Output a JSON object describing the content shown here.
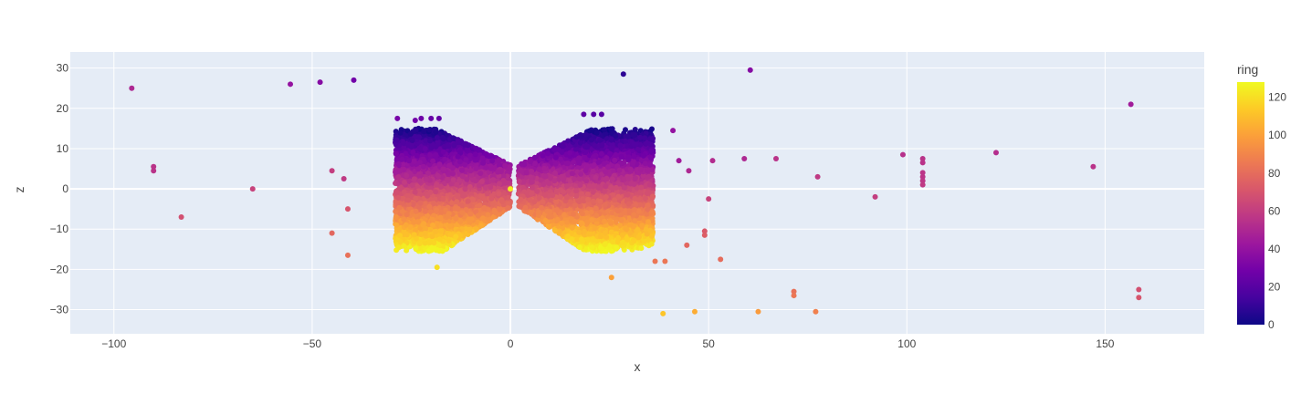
{
  "chart_data": {
    "type": "scatter",
    "title": "",
    "xlabel": "x",
    "ylabel": "z",
    "xlim": [
      -111,
      175
    ],
    "ylim": [
      -36,
      34
    ],
    "x_ticks": [
      -100,
      -50,
      0,
      50,
      100,
      150
    ],
    "x_tick_labels": [
      "−100",
      "−50",
      "0",
      "50",
      "100",
      "150"
    ],
    "y_ticks": [
      -30,
      -20,
      -10,
      0,
      10,
      20,
      30
    ],
    "y_tick_labels": [
      "−30",
      "−20",
      "−10",
      "0",
      "10",
      "20",
      "30"
    ],
    "grid": true,
    "legend": "none",
    "plot_background": "#e5ecf6",
    "grid_color": "#ffffff",
    "colorbar": {
      "title": "ring",
      "min": 0,
      "max": 128,
      "ticks": [
        0,
        20,
        40,
        60,
        80,
        100,
        120
      ],
      "tick_labels": [
        "0",
        "20",
        "40",
        "60",
        "80",
        "100",
        "120"
      ],
      "colorscale": [
        "#0d0887",
        "#46039f",
        "#7201a8",
        "#9c179e",
        "#bd3786",
        "#d8576b",
        "#ed7953",
        "#fb9f3a",
        "#fdca26",
        "#f0f921"
      ]
    },
    "points": [
      {
        "x": -95.5,
        "z": 25,
        "ring": 50
      },
      {
        "x": -90,
        "z": 5.5,
        "ring": 55
      },
      {
        "x": -90,
        "z": 4.5,
        "ring": 55
      },
      {
        "x": -83,
        "z": -7,
        "ring": 68
      },
      {
        "x": -65,
        "z": 0,
        "ring": 62
      },
      {
        "x": -55.5,
        "z": 26,
        "ring": 40
      },
      {
        "x": -48,
        "z": 26.5,
        "ring": 35
      },
      {
        "x": -39.5,
        "z": 27,
        "ring": 28
      },
      {
        "x": -45,
        "z": 4.5,
        "ring": 60
      },
      {
        "x": -42,
        "z": 2.5,
        "ring": 58
      },
      {
        "x": -41,
        "z": -5,
        "ring": 70
      },
      {
        "x": -45,
        "z": -11,
        "ring": 78
      },
      {
        "x": -41,
        "z": -16.5,
        "ring": 82
      },
      {
        "x": -28.5,
        "z": 17.5,
        "ring": 30
      },
      {
        "x": -24,
        "z": 17,
        "ring": 28
      },
      {
        "x": -22.5,
        "z": 17.5,
        "ring": 27
      },
      {
        "x": -20,
        "z": 17.5,
        "ring": 25
      },
      {
        "x": -18,
        "z": 17.5,
        "ring": 24
      },
      {
        "x": -18.5,
        "z": -19.5,
        "ring": 120
      },
      {
        "x": 0,
        "z": 0,
        "ring": 124
      },
      {
        "x": 18.5,
        "z": 18.5,
        "ring": 22
      },
      {
        "x": 21,
        "z": 18.5,
        "ring": 20
      },
      {
        "x": 23,
        "z": 18.5,
        "ring": 20
      },
      {
        "x": 28.5,
        "z": 28.5,
        "ring": 8
      },
      {
        "x": 41,
        "z": 14.5,
        "ring": 40
      },
      {
        "x": 42.5,
        "z": 7,
        "ring": 45
      },
      {
        "x": 45,
        "z": 4.5,
        "ring": 50
      },
      {
        "x": 51,
        "z": 7,
        "ring": 52
      },
      {
        "x": 50,
        "z": -2.5,
        "ring": 62
      },
      {
        "x": 49,
        "z": -10.5,
        "ring": 72
      },
      {
        "x": 49,
        "z": -11.5,
        "ring": 74
      },
      {
        "x": 53,
        "z": -17.5,
        "ring": 80
      },
      {
        "x": 44.5,
        "z": -14,
        "ring": 78
      },
      {
        "x": 39,
        "z": -18,
        "ring": 84
      },
      {
        "x": 36.5,
        "z": -18,
        "ring": 84
      },
      {
        "x": 25.5,
        "z": -22,
        "ring": 100
      },
      {
        "x": 38.5,
        "z": -31,
        "ring": 112
      },
      {
        "x": 46.5,
        "z": -30.5,
        "ring": 104
      },
      {
        "x": 60.5,
        "z": 29.5,
        "ring": 35
      },
      {
        "x": 59,
        "z": 7.5,
        "ring": 50
      },
      {
        "x": 67,
        "z": 7.5,
        "ring": 55
      },
      {
        "x": 77.5,
        "z": 3,
        "ring": 58
      },
      {
        "x": 62.5,
        "z": -30.5,
        "ring": 98
      },
      {
        "x": 71.5,
        "z": -25.5,
        "ring": 82
      },
      {
        "x": 71.5,
        "z": -26.5,
        "ring": 84
      },
      {
        "x": 77,
        "z": -30.5,
        "ring": 88
      },
      {
        "x": 92,
        "z": -2,
        "ring": 60
      },
      {
        "x": 99,
        "z": 8.5,
        "ring": 54
      },
      {
        "x": 104,
        "z": 7.5,
        "ring": 55
      },
      {
        "x": 104,
        "z": 6.5,
        "ring": 55
      },
      {
        "x": 104,
        "z": 4,
        "ring": 56
      },
      {
        "x": 104,
        "z": 3,
        "ring": 56
      },
      {
        "x": 104,
        "z": 2,
        "ring": 57
      },
      {
        "x": 104,
        "z": 1,
        "ring": 58
      },
      {
        "x": 122.5,
        "z": 9,
        "ring": 53
      },
      {
        "x": 147,
        "z": 5.5,
        "ring": 55
      },
      {
        "x": 156.5,
        "z": 21,
        "ring": 45
      },
      {
        "x": 158.5,
        "z": -25,
        "ring": 68
      },
      {
        "x": 158.5,
        "z": -27,
        "ring": 70
      }
    ]
  }
}
